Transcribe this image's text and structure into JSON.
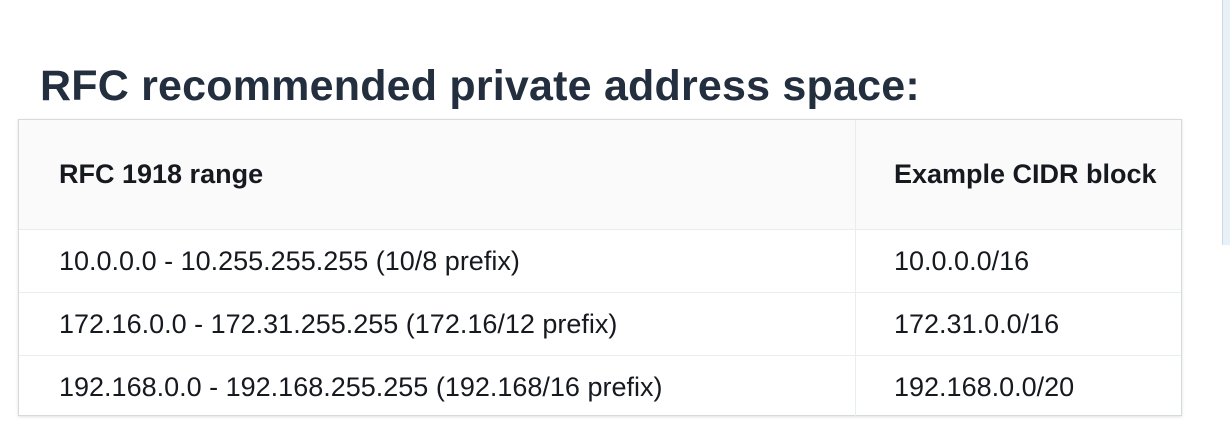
{
  "title": "RFC recommended private address space:",
  "table": {
    "headers": [
      "RFC 1918 range",
      "Example CIDR block"
    ],
    "rows": [
      [
        "10.0.0.0 - 10.255.255.255 (10/8 prefix)",
        "10.0.0.0/16"
      ],
      [
        "172.16.0.0 - 172.31.255.255 (172.16/12 prefix)",
        "172.31.0.0/16"
      ],
      [
        "192.168.0.0 - 192.168.255.255 (192.168/16 prefix)",
        "192.168.0.0/20"
      ]
    ]
  }
}
